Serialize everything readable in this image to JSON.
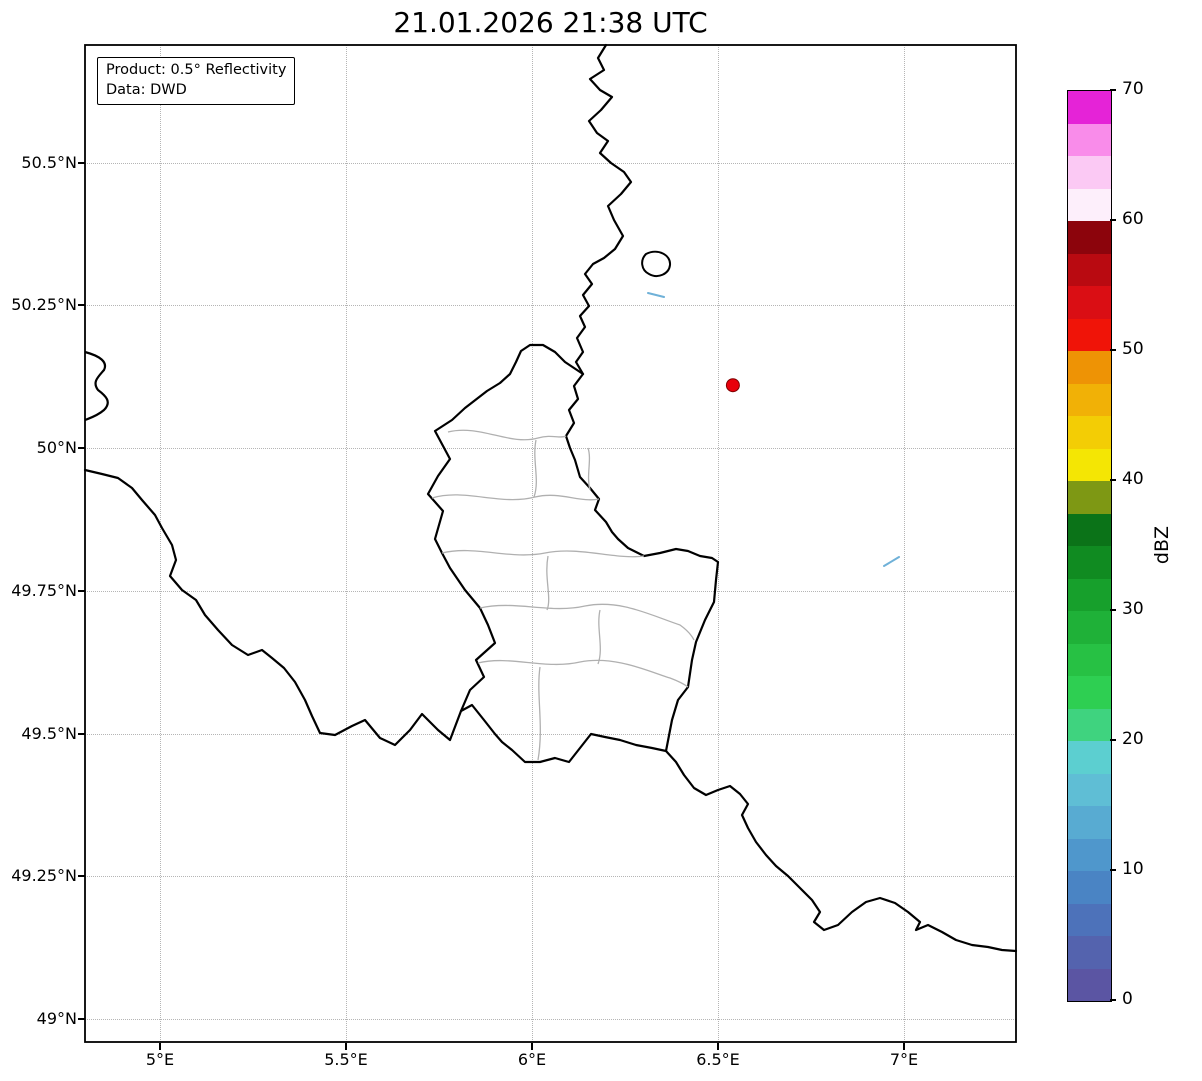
{
  "title": "21.01.2026 21:38 UTC",
  "info_box": {
    "product_line": "Product: 0.5° Reflectivity",
    "data_line": "Data: DWD"
  },
  "map": {
    "lat_ticks": [
      {
        "value": 50.5,
        "label": "50.5°N"
      },
      {
        "value": 50.25,
        "label": "50.25°N"
      },
      {
        "value": 50.0,
        "label": "50°N"
      },
      {
        "value": 49.75,
        "label": "49.75°N"
      },
      {
        "value": 49.5,
        "label": "49.5°N"
      },
      {
        "value": 49.25,
        "label": "49.25°N"
      },
      {
        "value": 49.0,
        "label": "49°N"
      }
    ],
    "lon_ticks": [
      {
        "value": 5.0,
        "label": "5°E"
      },
      {
        "value": 5.5,
        "label": "5.5°E"
      },
      {
        "value": 6.0,
        "label": "6°E"
      },
      {
        "value": 6.5,
        "label": "6.5°E"
      },
      {
        "value": 7.0,
        "label": "7°E"
      }
    ],
    "marker": {
      "lon": 6.54,
      "lat": 50.11,
      "color": "#e8000b",
      "edge_color": "#7f0000"
    },
    "colors": {
      "country_border": "#000000",
      "district_border": "#b0b0b0",
      "river": "#6fb1d8",
      "grid": "#b5b5b5"
    }
  },
  "colorbar": {
    "label": "dBZ",
    "min": 0,
    "max": 70,
    "tick_values": [
      0,
      10,
      20,
      30,
      40,
      50,
      60,
      70
    ],
    "segment_colors": [
      "#5b55a3",
      "#5463ae",
      "#4d72ba",
      "#4a84c4",
      "#4f97cc",
      "#58abd2",
      "#5fbed5",
      "#5ccfd0",
      "#3fd37f",
      "#2ecf52",
      "#27c144",
      "#1fb138",
      "#17a02c",
      "#108b21",
      "#0b7318",
      "#7e9814",
      "#f4e604",
      "#f3cd05",
      "#f1b106",
      "#ee9305",
      "#f01408",
      "#da0e14",
      "#b90a11",
      "#8c040c",
      "#fdeffb",
      "#fbc9f4",
      "#f98cea",
      "#e523d7"
    ]
  }
}
